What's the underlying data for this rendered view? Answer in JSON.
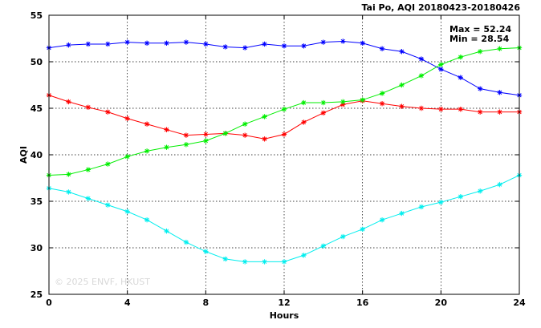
{
  "chart_data": {
    "type": "line",
    "title": "Tai Po, AQI 20180423-20180426",
    "xlabel": "Hours",
    "ylabel": "AQI",
    "xlim": [
      0,
      24
    ],
    "ylim": [
      25,
      55
    ],
    "xticks": [
      0,
      4,
      8,
      12,
      16,
      20,
      24
    ],
    "yticks": [
      25,
      30,
      35,
      40,
      45,
      50,
      55
    ],
    "grid": true,
    "annotations": {
      "max": "Max = 52.24",
      "min": "Min = 28.54"
    },
    "watermark": "© 2025  ENVF, HKUST",
    "x": [
      0,
      1,
      2,
      3,
      4,
      5,
      6,
      7,
      8,
      9,
      10,
      11,
      12,
      13,
      14,
      15,
      16,
      17,
      18,
      19,
      20,
      21,
      22,
      23,
      24
    ],
    "series": [
      {
        "color": "#0000ff",
        "values": [
          51.5,
          51.8,
          51.9,
          51.9,
          52.1,
          52.0,
          52.0,
          52.1,
          51.9,
          51.6,
          51.5,
          51.9,
          51.7,
          51.7,
          52.1,
          52.2,
          52.0,
          51.4,
          51.1,
          50.3,
          49.2,
          48.3,
          47.1,
          46.7,
          46.4
        ]
      },
      {
        "color": "#ff0000",
        "values": [
          46.4,
          45.7,
          45.1,
          44.6,
          43.9,
          43.3,
          42.7,
          42.1,
          42.2,
          42.3,
          42.1,
          41.7,
          42.2,
          43.5,
          44.5,
          45.4,
          45.8,
          45.5,
          45.2,
          45.0,
          44.9,
          44.9,
          44.6,
          44.6,
          44.6
        ]
      },
      {
        "color": "#00ee00",
        "values": [
          37.8,
          37.9,
          38.4,
          39.0,
          39.8,
          40.4,
          40.8,
          41.1,
          41.5,
          42.3,
          43.3,
          44.1,
          44.9,
          45.6,
          45.6,
          45.7,
          45.9,
          46.6,
          47.5,
          48.5,
          49.7,
          50.5,
          51.1,
          51.4,
          51.5
        ]
      },
      {
        "color": "#00eeee",
        "values": [
          36.4,
          36.0,
          35.3,
          34.6,
          33.9,
          33.0,
          31.8,
          30.6,
          29.6,
          28.8,
          28.5,
          28.5,
          28.5,
          29.2,
          30.2,
          31.2,
          32.0,
          33.0,
          33.7,
          34.4,
          34.9,
          35.5,
          36.1,
          36.8,
          37.8
        ]
      }
    ]
  }
}
